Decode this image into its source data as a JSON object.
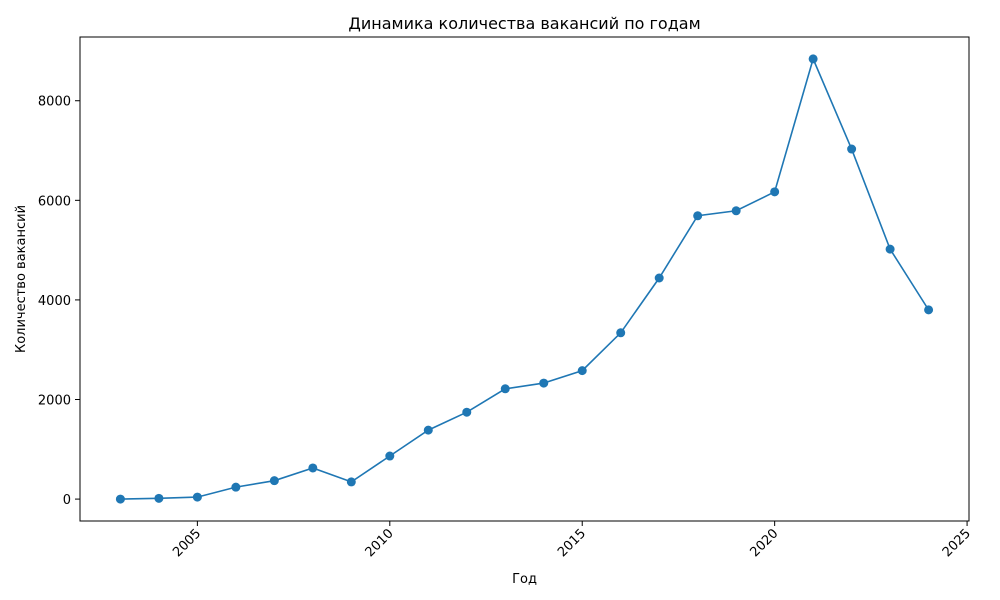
{
  "chart_data": {
    "type": "line",
    "title": "Динамика количества вакансий по годам",
    "xlabel": "Год",
    "ylabel": "Количество вакансий",
    "x": [
      2003,
      2004,
      2005,
      2006,
      2007,
      2008,
      2009,
      2010,
      2011,
      2012,
      2013,
      2014,
      2015,
      2016,
      2017,
      2018,
      2019,
      2020,
      2021,
      2022,
      2023,
      2024
    ],
    "values": [
      0,
      15,
      40,
      240,
      370,
      625,
      345,
      865,
      1385,
      1745,
      2215,
      2330,
      2580,
      3340,
      4440,
      5690,
      5790,
      6170,
      8840,
      7030,
      5020,
      3800
    ],
    "xlim": [
      2001.95,
      2025.05
    ],
    "ylim": [
      -440,
      9280
    ],
    "x_ticks": [
      2005,
      2010,
      2015,
      2020,
      2025
    ],
    "y_ticks": [
      0,
      2000,
      4000,
      6000,
      8000
    ],
    "x_tick_rotation": 45,
    "grid": false,
    "marker": "circle",
    "color": "#1f77b4"
  }
}
